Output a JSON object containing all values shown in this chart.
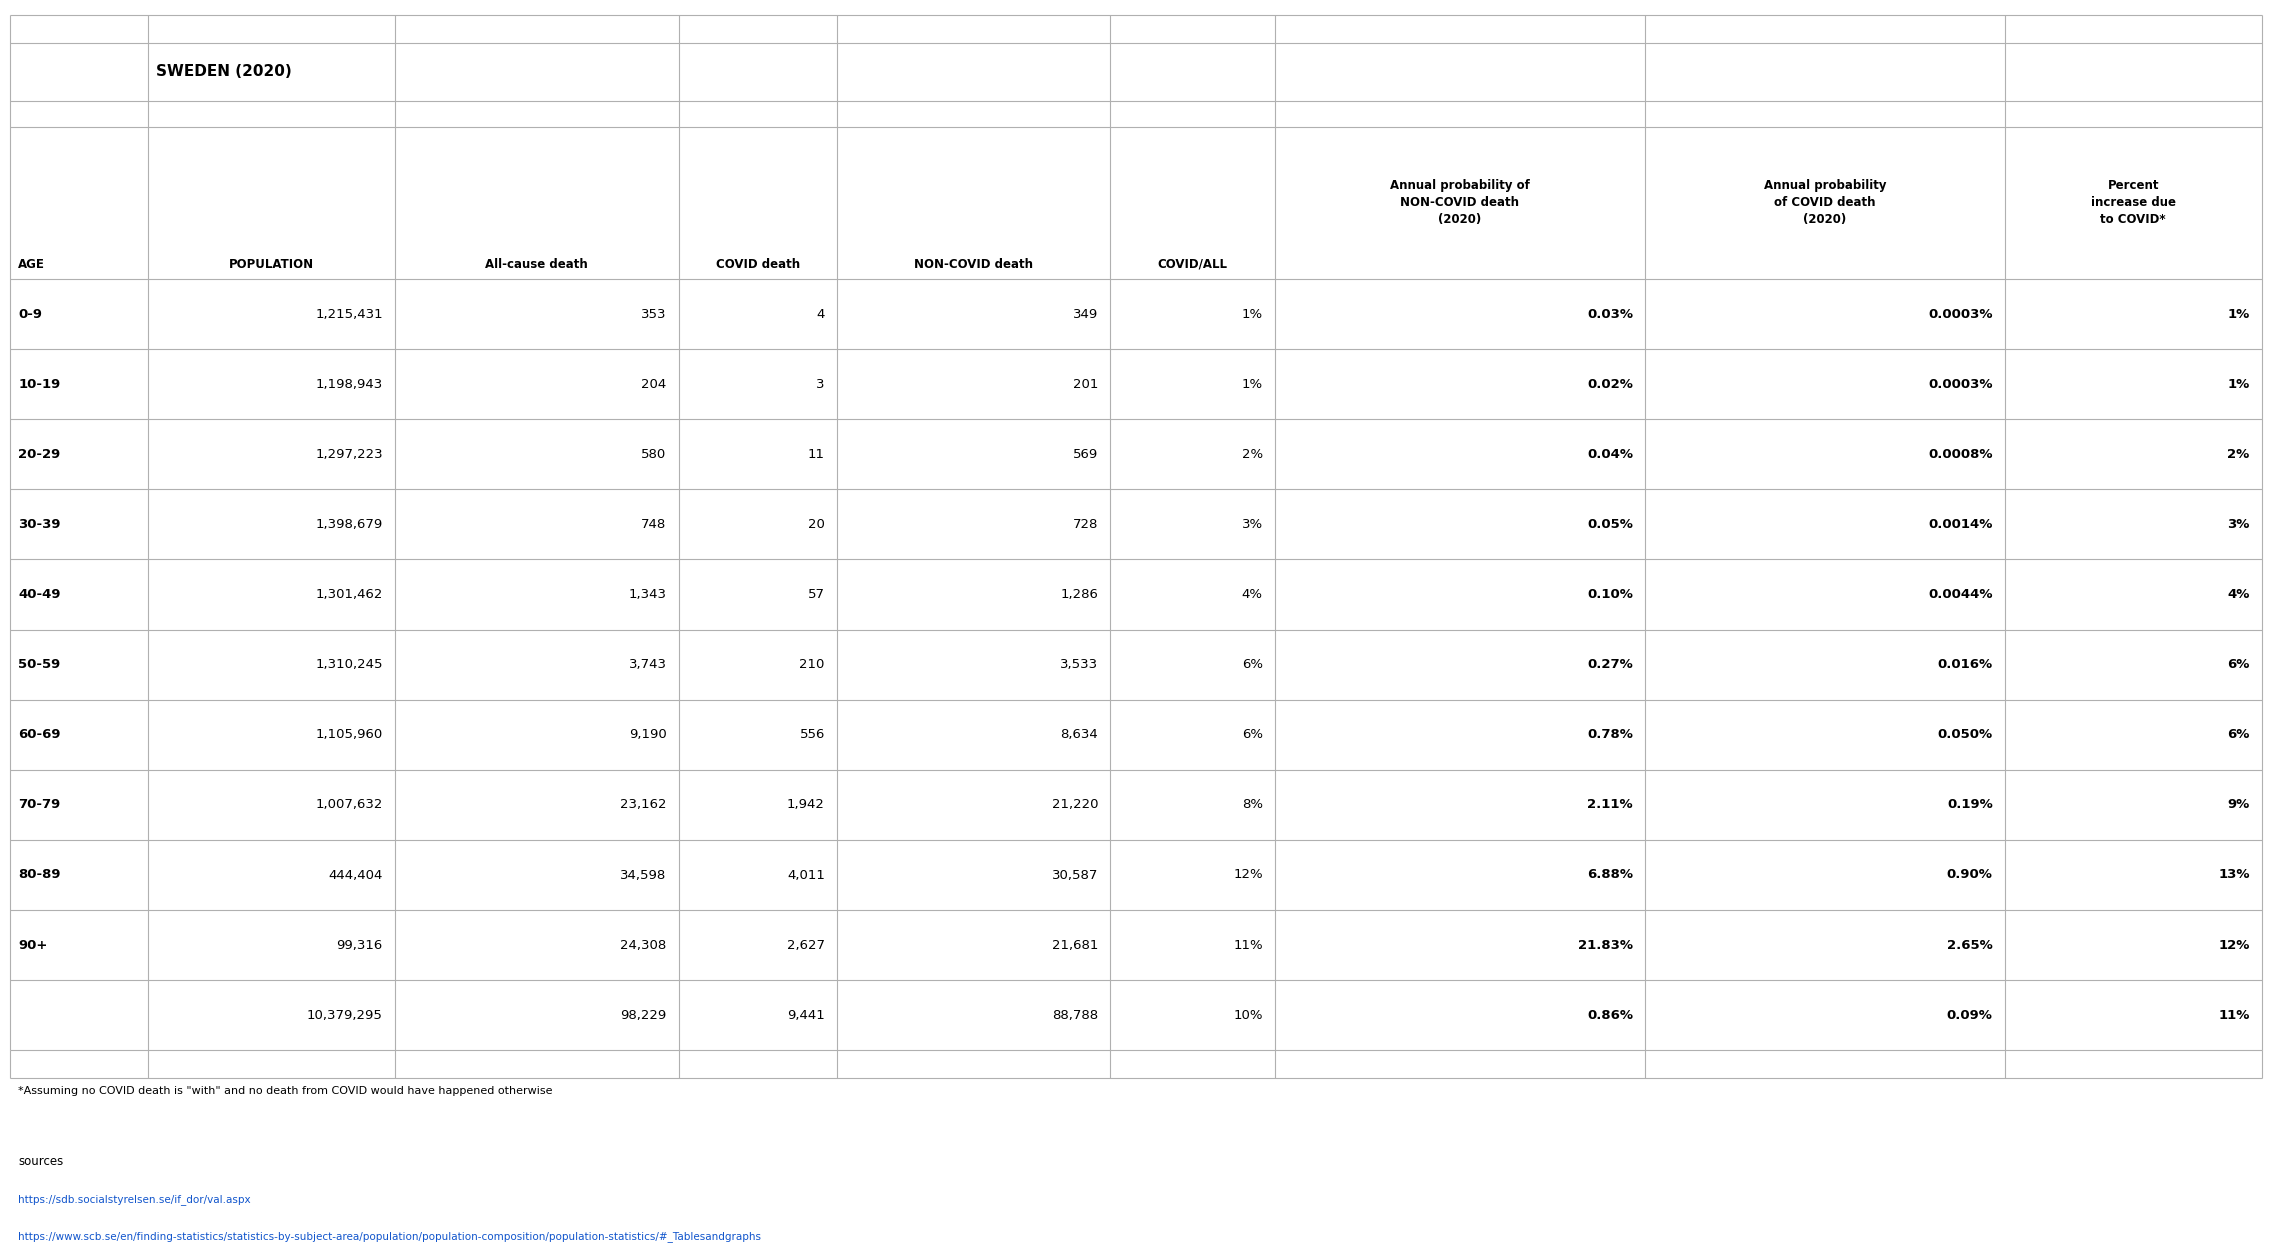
{
  "title": "SWEDEN (2020)",
  "col_headers": [
    "AGE",
    "POPULATION",
    "All-cause death",
    "COVID death",
    "NON-COVID death",
    "COVID/ALL",
    "Annual probability of\nNON-COVID death\n(2020)",
    "Annual probability\nof COVID death\n(2020)",
    "Percent\nincrease due\nto COVID*"
  ],
  "rows": [
    [
      "0-9",
      "1,215,431",
      "353",
      "4",
      "349",
      "1%",
      "0.03%",
      "0.0003%",
      "1%"
    ],
    [
      "10-19",
      "1,198,943",
      "204",
      "3",
      "201",
      "1%",
      "0.02%",
      "0.0003%",
      "1%"
    ],
    [
      "20-29",
      "1,297,223",
      "580",
      "11",
      "569",
      "2%",
      "0.04%",
      "0.0008%",
      "2%"
    ],
    [
      "30-39",
      "1,398,679",
      "748",
      "20",
      "728",
      "3%",
      "0.05%",
      "0.0014%",
      "3%"
    ],
    [
      "40-49",
      "1,301,462",
      "1,343",
      "57",
      "1,286",
      "4%",
      "0.10%",
      "0.0044%",
      "4%"
    ],
    [
      "50-59",
      "1,310,245",
      "3,743",
      "210",
      "3,533",
      "6%",
      "0.27%",
      "0.016%",
      "6%"
    ],
    [
      "60-69",
      "1,105,960",
      "9,190",
      "556",
      "8,634",
      "6%",
      "0.78%",
      "0.050%",
      "6%"
    ],
    [
      "70-79",
      "1,007,632",
      "23,162",
      "1,942",
      "21,220",
      "8%",
      "2.11%",
      "0.19%",
      "9%"
    ],
    [
      "80-89",
      "444,404",
      "34,598",
      "4,011",
      "30,587",
      "12%",
      "6.88%",
      "0.90%",
      "13%"
    ],
    [
      "90+",
      "99,316",
      "24,308",
      "2,627",
      "21,681",
      "11%",
      "21.83%",
      "2.65%",
      "12%"
    ]
  ],
  "totals": [
    "",
    "10,379,295",
    "98,229",
    "9,441",
    "88,788",
    "10%",
    "0.86%",
    "0.09%",
    "11%"
  ],
  "footnote": "*Assuming no COVID death is \"with\" and no death from COVID would have happened otherwise",
  "sources_label": "sources",
  "url1": "https://sdb.socialstyrelsen.se/if_dor/val.aspx",
  "url2": "https://www.scb.se/en/finding-statistics/statistics-by-subject-area/population/population-composition/population-statistics/#_Tablesandgraphs",
  "bg_color": "#ffffff",
  "grid_color": "#b0b0b0",
  "header_fontsize": 8.5,
  "data_fontsize": 9.5,
  "title_fontsize": 11,
  "footnote_fontsize": 8.0,
  "url_fontsize": 7.5
}
